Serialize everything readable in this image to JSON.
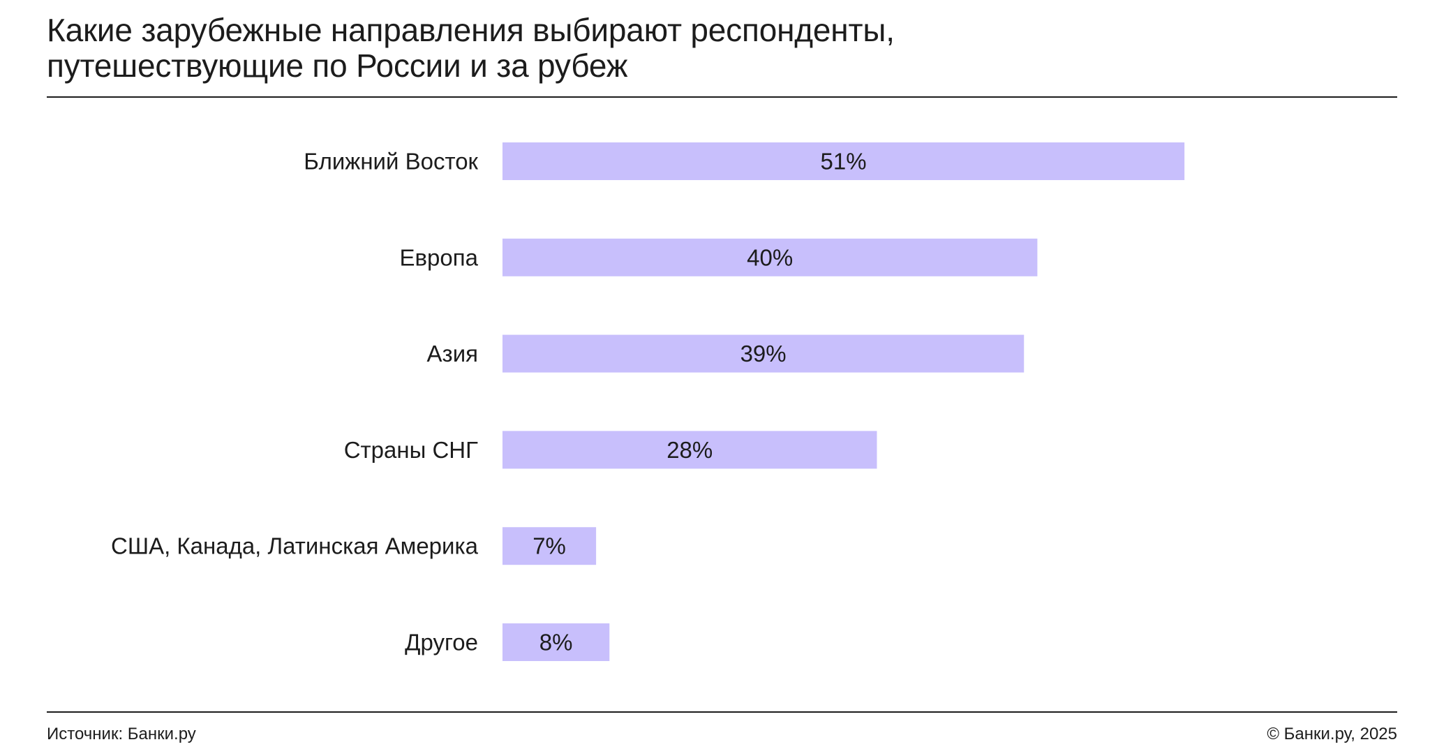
{
  "header": {
    "title_line1": "Какие зарубежные направления выбирают респонденты,",
    "title_line2": "путешествующие по России и за рубеж"
  },
  "footer": {
    "source": "Источник: Банки.ру",
    "copyright": "© Банки.ру, 2025"
  },
  "colors": {
    "bar": "#c8bffc",
    "text": "#1c1c1c",
    "rule": "#1c1c1c"
  },
  "chart_data": {
    "type": "bar",
    "orientation": "horizontal",
    "title": "Какие зарубежные направления выбирают респонденты, путешествующие по России и за рубеж",
    "categories": [
      "Ближний Восток",
      "Европа",
      "Азия",
      "Страны СНГ",
      "США, Канада, Латинская Америка",
      "Другое"
    ],
    "values": [
      51,
      40,
      39,
      28,
      7,
      8
    ],
    "value_labels": [
      "51%",
      "40%",
      "39%",
      "28%",
      "7%",
      "8%"
    ],
    "unit": "%",
    "xlim": [
      0,
      100
    ],
    "grid": false,
    "legend": "none"
  }
}
